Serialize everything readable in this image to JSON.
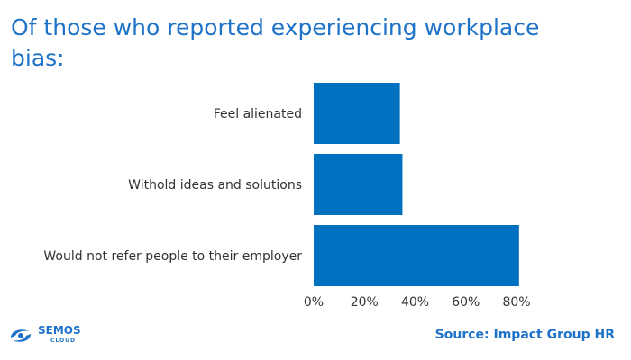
{
  "title": "Of those who reported experiencing workplace bias:",
  "source": "Source: Impact Group HR",
  "logo": {
    "name": "SEMOS",
    "sub": "CLOUD",
    "icon": "semos-swirl-icon"
  },
  "colors": {
    "bar": "#0070c0",
    "title": "#1e73c8"
  },
  "chart_data": {
    "type": "bar",
    "orientation": "horizontal",
    "categories": [
      "Feel alienated",
      "Withold ideas and solutions",
      "Would not refer people to their employer"
    ],
    "values": [
      34,
      35,
      81
    ],
    "unit": "%",
    "xlim": [
      0,
      80
    ],
    "ticks": [
      "0%",
      "20%",
      "40%",
      "60%",
      "80%"
    ],
    "grid": false,
    "title": "Of those who reported experiencing workplace bias:"
  }
}
